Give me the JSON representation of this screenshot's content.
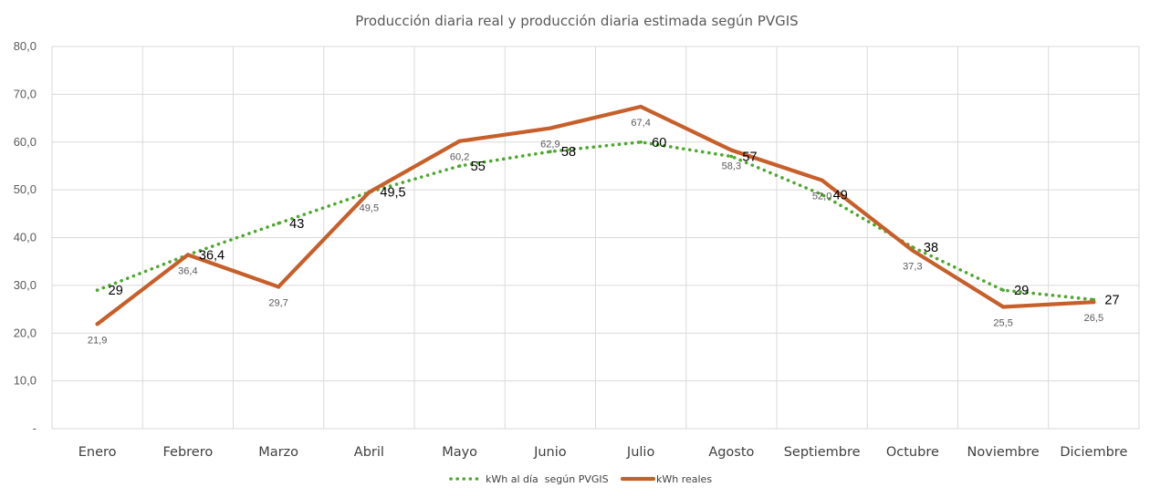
{
  "chart_data": {
    "type": "line",
    "title": "Producción diaria real y producción diaria estimada según PVGIS",
    "xlabel": "",
    "ylabel": "",
    "categories": [
      "Enero",
      "Febrero",
      "Marzo",
      "Abril",
      "Mayo",
      "Junio",
      "Julio",
      "Agosto",
      "Septiembre",
      "Octubre",
      "Noviembre",
      "Diciembre"
    ],
    "ylim": [
      0,
      80
    ],
    "yticks": [
      0,
      10,
      20,
      30,
      40,
      50,
      60,
      70,
      80
    ],
    "ytick_labels": [
      "-",
      "10,0",
      "20,0",
      "30,0",
      "40,0",
      "50,0",
      "60,0",
      "70,0",
      "80,0"
    ],
    "grid": true,
    "legend_position": "bottom",
    "series": [
      {
        "name": "kWh al día  según PVGIS",
        "style": "dotted",
        "color": "#4ea72e",
        "values": [
          29,
          36.4,
          43,
          49.5,
          55,
          58,
          60,
          57,
          49,
          38,
          29,
          27
        ],
        "labels": [
          "29",
          "36,4",
          "43",
          "49,5",
          "55",
          "58",
          "60",
          "57",
          "49",
          "38",
          "29",
          "27"
        ]
      },
      {
        "name": "kWh reales",
        "style": "solid",
        "color": "#c65f2a",
        "values": [
          21.9,
          36.4,
          29.7,
          49.5,
          60.2,
          62.9,
          67.4,
          58.3,
          52.0,
          37.3,
          25.5,
          26.5
        ],
        "labels": [
          "21,9",
          "36,4",
          "29,7",
          "49,5",
          "60,2",
          "62,9",
          "67,4",
          "58,3",
          "52,0",
          "37,3",
          "25,5",
          "26,5"
        ]
      }
    ]
  }
}
